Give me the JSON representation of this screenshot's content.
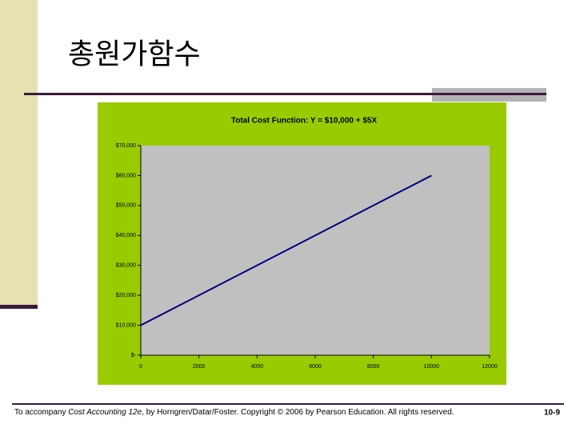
{
  "slide": {
    "title": "총원가함수",
    "footer": [
      "To accompany ",
      "Cost Accounting 12e",
      ", by Horngren/Datar/Foster. Copyright © 2006 by Pearson Education. All rights reserved."
    ],
    "page": "10-9"
  },
  "chart_data": {
    "type": "line",
    "title": "Total Cost Function: Y = $10,000 + $5X",
    "x": [
      0,
      10000
    ],
    "values": [
      10000,
      60000
    ],
    "color": "#000080",
    "xlim": [
      0,
      12000
    ],
    "xticks": [
      0,
      2000,
      4000,
      6000,
      8000,
      10000,
      12000
    ],
    "ylim": [
      0,
      70000
    ],
    "yticks": [
      {
        "value": 0,
        "label": "$-"
      },
      {
        "value": 10000,
        "label": "$10,000"
      },
      {
        "value": 20000,
        "label": "$20,000"
      },
      {
        "value": 30000,
        "label": "$30,000"
      },
      {
        "value": 40000,
        "label": "$40,000"
      },
      {
        "value": 50000,
        "label": "$50,000"
      },
      {
        "value": 60000,
        "label": "$60,000"
      },
      {
        "value": 70000,
        "label": "$70,000"
      }
    ],
    "grid": false
  }
}
